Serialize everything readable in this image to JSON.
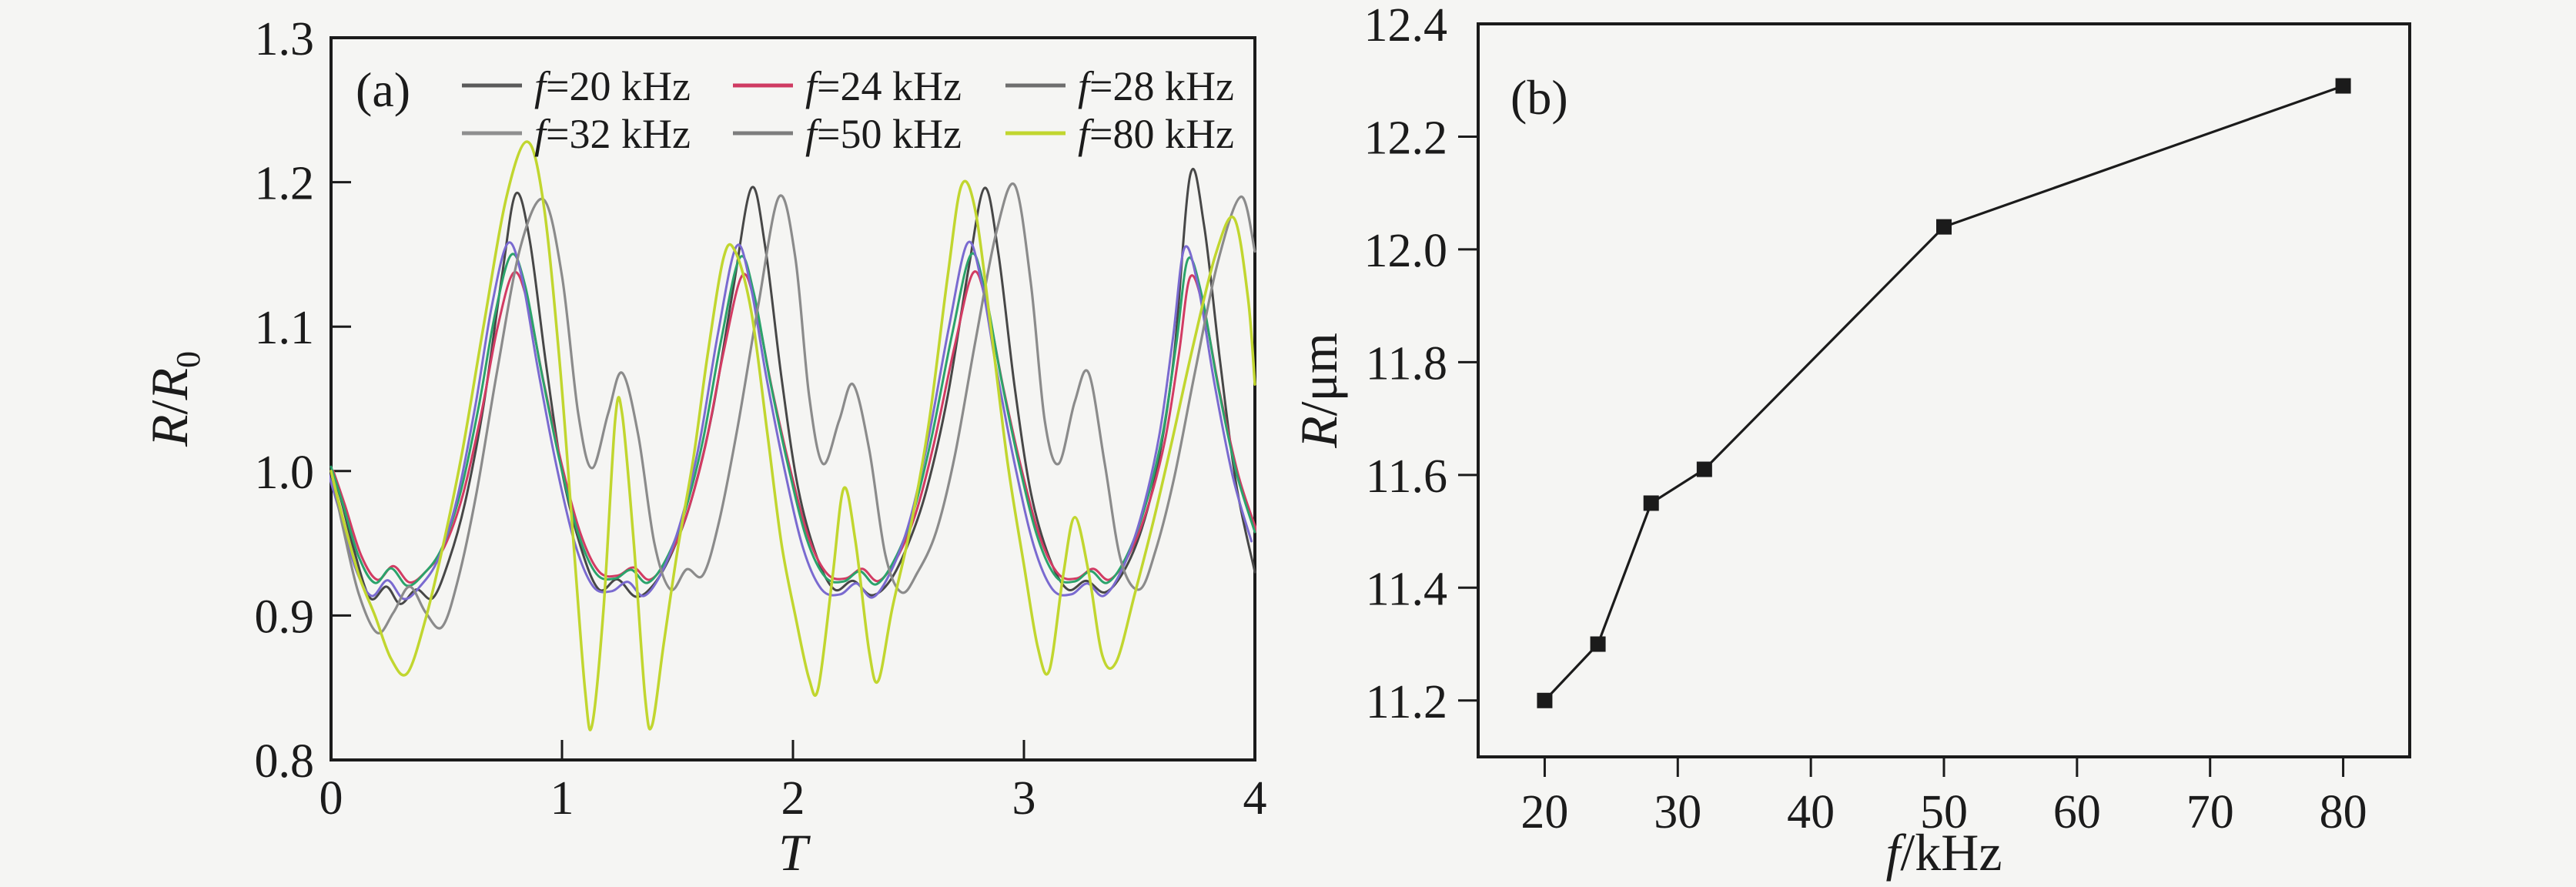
{
  "figure": {
    "background": "#f5f5f3",
    "ink": "#1b1b1b"
  },
  "panel_a": {
    "label": "(a)",
    "xlabel_italic": "T",
    "ylabel_r1": "R",
    "ylabel_slash": "/",
    "ylabel_r2": "R",
    "ylabel_sub": "0"
  },
  "panel_b": {
    "label": "(b)",
    "xlabel_italic": "f",
    "xlabel_rest": "/kHz",
    "ylabel_italic": "R",
    "ylabel_rest": "/μm"
  },
  "chart_data": [
    {
      "type": "line",
      "panel": "a",
      "xlabel": "T",
      "ylabel": "R/R0",
      "xlim": [
        0,
        4
      ],
      "ylim": [
        0.8,
        1.3
      ],
      "x_ticks": [
        0,
        1,
        2,
        3,
        4
      ],
      "x_tick_labels": [
        "0",
        "1",
        "2",
        "3",
        "4"
      ],
      "y_ticks": [
        0.8,
        0.9,
        1.0,
        1.1,
        1.2,
        1.3
      ],
      "y_tick_labels": [
        "0.8",
        "0.9",
        "1.0",
        "1.1",
        "1.2",
        "1.3"
      ],
      "grid": false,
      "legend_position": "top-inside-two-rows",
      "legend": [
        {
          "italic": "f",
          "rest": "=20 kHz"
        },
        {
          "italic": "f",
          "rest": "=24 kHz"
        },
        {
          "italic": "f",
          "rest": "=28 kHz"
        },
        {
          "italic": "f",
          "rest": "=32 kHz"
        },
        {
          "italic": "f",
          "rest": "=50 kHz"
        },
        {
          "italic": "f",
          "rest": "=80 kHz"
        }
      ],
      "base_points": [
        [
          0,
          1.0
        ],
        [
          0.05,
          0.975
        ],
        [
          0.12,
          0.938
        ],
        [
          0.19,
          0.92
        ],
        [
          0.26,
          0.93
        ],
        [
          0.33,
          0.918
        ],
        [
          0.4,
          0.926
        ],
        [
          0.48,
          0.944
        ],
        [
          0.56,
          0.982
        ],
        [
          0.64,
          1.042
        ],
        [
          0.71,
          1.105
        ],
        [
          0.78,
          1.146
        ],
        [
          0.84,
          1.125
        ],
        [
          0.91,
          1.066
        ],
        [
          0.99,
          1.004
        ],
        [
          1.07,
          0.954
        ],
        [
          1.15,
          0.926
        ],
        [
          1.23,
          0.923
        ],
        [
          1.3,
          0.929
        ],
        [
          1.37,
          0.92
        ],
        [
          1.45,
          0.936
        ],
        [
          1.53,
          0.968
        ],
        [
          1.61,
          1.018
        ],
        [
          1.69,
          1.088
        ],
        [
          1.77,
          1.144
        ],
        [
          1.83,
          1.12
        ],
        [
          1.9,
          1.06
        ],
        [
          1.98,
          1.0
        ],
        [
          2.06,
          0.95
        ],
        [
          2.14,
          0.924
        ],
        [
          2.22,
          0.921
        ],
        [
          2.29,
          0.928
        ],
        [
          2.36,
          0.919
        ],
        [
          2.44,
          0.936
        ],
        [
          2.52,
          0.968
        ],
        [
          2.6,
          1.02
        ],
        [
          2.69,
          1.092
        ],
        [
          2.77,
          1.146
        ],
        [
          2.83,
          1.122
        ],
        [
          2.9,
          1.062
        ],
        [
          2.98,
          1.001
        ],
        [
          3.06,
          0.951
        ],
        [
          3.14,
          0.924
        ],
        [
          3.22,
          0.921
        ],
        [
          3.29,
          0.928
        ],
        [
          3.36,
          0.92
        ],
        [
          3.44,
          0.937
        ],
        [
          3.52,
          0.97
        ],
        [
          3.6,
          1.022
        ],
        [
          3.66,
          1.085
        ],
        [
          3.71,
          1.143
        ],
        [
          3.77,
          1.118
        ],
        [
          3.84,
          1.056
        ],
        [
          3.92,
          0.996
        ],
        [
          4.0,
          0.955
        ]
      ],
      "series": [
        {
          "name": "f=20 kHz",
          "color": "#474747",
          "legend_color": "#5a5a5a",
          "width": 3,
          "points": [
            [
              0,
              1.0
            ],
            [
              0.04,
              0.982
            ],
            [
              0.1,
              0.945
            ],
            [
              0.17,
              0.912
            ],
            [
              0.24,
              0.92
            ],
            [
              0.3,
              0.908
            ],
            [
              0.37,
              0.918
            ],
            [
              0.44,
              0.912
            ],
            [
              0.51,
              0.938
            ],
            [
              0.58,
              0.978
            ],
            [
              0.66,
              1.045
            ],
            [
              0.74,
              1.135
            ],
            [
              0.8,
              1.192
            ],
            [
              0.86,
              1.16
            ],
            [
              0.93,
              1.075
            ],
            [
              1.0,
              1.0
            ],
            [
              1.08,
              0.948
            ],
            [
              1.16,
              0.918
            ],
            [
              1.24,
              0.925
            ],
            [
              1.32,
              0.913
            ],
            [
              1.4,
              0.922
            ],
            [
              1.48,
              0.945
            ],
            [
              1.56,
              0.98
            ],
            [
              1.65,
              1.04
            ],
            [
              1.74,
              1.125
            ],
            [
              1.82,
              1.196
            ],
            [
              1.88,
              1.155
            ],
            [
              1.95,
              1.065
            ],
            [
              2.02,
              0.99
            ],
            [
              2.1,
              0.942
            ],
            [
              2.18,
              0.918
            ],
            [
              2.26,
              0.924
            ],
            [
              2.34,
              0.914
            ],
            [
              2.42,
              0.924
            ],
            [
              2.5,
              0.95
            ],
            [
              2.58,
              0.988
            ],
            [
              2.67,
              1.052
            ],
            [
              2.76,
              1.14
            ],
            [
              2.83,
              1.196
            ],
            [
              2.89,
              1.15
            ],
            [
              2.96,
              1.058
            ],
            [
              3.03,
              0.985
            ],
            [
              3.11,
              0.94
            ],
            [
              3.19,
              0.918
            ],
            [
              3.27,
              0.924
            ],
            [
              3.35,
              0.916
            ],
            [
              3.43,
              0.93
            ],
            [
              3.51,
              0.96
            ],
            [
              3.58,
              1.005
            ],
            [
              3.65,
              1.08
            ],
            [
              3.72,
              1.205
            ],
            [
              3.78,
              1.17
            ],
            [
              3.85,
              1.075
            ],
            [
              3.92,
              0.99
            ],
            [
              4.0,
              0.93
            ]
          ]
        },
        {
          "name": "f=24 kHz",
          "color": "#d23b63",
          "legend_color": "#cf3a62",
          "width": 3,
          "from_base": true,
          "scale": 0.94,
          "dx": 0.01,
          "dy": 0
        },
        {
          "name": "f=28 kHz",
          "color": "#2ba36b",
          "legend_color": "#6e6e6e",
          "width": 3,
          "from_base": true,
          "scale": 1.005,
          "dx": 0,
          "dy": 0.003
        },
        {
          "name": "f=32 kHz",
          "color": "#7a6ad0",
          "legend_color": "#8f8f8f",
          "width": 3,
          "from_base": true,
          "scale": 1.08,
          "dx": -0.015,
          "dy": 0
        },
        {
          "name": "f=50 kHz",
          "color": "#8b8b8b",
          "legend_color": "#7d7d7d",
          "width": 3.2,
          "points": [
            [
              0,
              1.0
            ],
            [
              0.05,
              0.962
            ],
            [
              0.12,
              0.915
            ],
            [
              0.2,
              0.888
            ],
            [
              0.27,
              0.902
            ],
            [
              0.34,
              0.92
            ],
            [
              0.41,
              0.902
            ],
            [
              0.48,
              0.892
            ],
            [
              0.55,
              0.925
            ],
            [
              0.63,
              0.985
            ],
            [
              0.72,
              1.07
            ],
            [
              0.82,
              1.155
            ],
            [
              0.92,
              1.188
            ],
            [
              1.0,
              1.135
            ],
            [
              1.07,
              1.04
            ],
            [
              1.13,
              1.002
            ],
            [
              1.2,
              1.04
            ],
            [
              1.26,
              1.068
            ],
            [
              1.33,
              1.025
            ],
            [
              1.4,
              0.95
            ],
            [
              1.47,
              0.918
            ],
            [
              1.54,
              0.932
            ],
            [
              1.61,
              0.928
            ],
            [
              1.68,
              0.965
            ],
            [
              1.76,
              1.03
            ],
            [
              1.85,
              1.115
            ],
            [
              1.94,
              1.19
            ],
            [
              2.01,
              1.148
            ],
            [
              2.07,
              1.052
            ],
            [
              2.13,
              1.005
            ],
            [
              2.2,
              1.035
            ],
            [
              2.26,
              1.06
            ],
            [
              2.33,
              1.015
            ],
            [
              2.4,
              0.942
            ],
            [
              2.47,
              0.916
            ],
            [
              2.54,
              0.93
            ],
            [
              2.62,
              0.958
            ],
            [
              2.7,
              1.01
            ],
            [
              2.79,
              1.09
            ],
            [
              2.88,
              1.165
            ],
            [
              2.96,
              1.198
            ],
            [
              3.03,
              1.13
            ],
            [
              3.09,
              1.035
            ],
            [
              3.15,
              1.005
            ],
            [
              3.22,
              1.048
            ],
            [
              3.28,
              1.068
            ],
            [
              3.35,
              1.005
            ],
            [
              3.42,
              0.938
            ],
            [
              3.5,
              0.918
            ],
            [
              3.57,
              0.945
            ],
            [
              3.65,
              0.995
            ],
            [
              3.74,
              1.068
            ],
            [
              3.84,
              1.145
            ],
            [
              3.94,
              1.19
            ],
            [
              4.0,
              1.152
            ]
          ]
        },
        {
          "name": "f=80 kHz",
          "color": "#c1d62f",
          "legend_color": "#c1d62f",
          "width": 3.5,
          "points": [
            [
              0,
              1.0
            ],
            [
              0.05,
              0.968
            ],
            [
              0.12,
              0.928
            ],
            [
              0.19,
              0.9
            ],
            [
              0.26,
              0.87
            ],
            [
              0.33,
              0.86
            ],
            [
              0.41,
              0.898
            ],
            [
              0.49,
              0.952
            ],
            [
              0.57,
              1.015
            ],
            [
              0.66,
              1.1
            ],
            [
              0.76,
              1.19
            ],
            [
              0.85,
              1.228
            ],
            [
              0.92,
              1.185
            ],
            [
              0.99,
              1.075
            ],
            [
              1.05,
              0.95
            ],
            [
              1.1,
              0.848
            ],
            [
              1.13,
              0.824
            ],
            [
              1.18,
              0.905
            ],
            [
              1.23,
              1.035
            ],
            [
              1.26,
              1.04
            ],
            [
              1.31,
              0.952
            ],
            [
              1.36,
              0.843
            ],
            [
              1.39,
              0.824
            ],
            [
              1.44,
              0.88
            ],
            [
              1.5,
              0.945
            ],
            [
              1.57,
              1.01
            ],
            [
              1.63,
              1.08
            ],
            [
              1.7,
              1.148
            ],
            [
              1.75,
              1.152
            ],
            [
              1.82,
              1.11
            ],
            [
              1.89,
              1.025
            ],
            [
              1.95,
              0.95
            ],
            [
              2.01,
              0.9
            ],
            [
              2.07,
              0.856
            ],
            [
              2.11,
              0.85
            ],
            [
              2.17,
              0.925
            ],
            [
              2.22,
              0.988
            ],
            [
              2.27,
              0.952
            ],
            [
              2.33,
              0.875
            ],
            [
              2.37,
              0.855
            ],
            [
              2.43,
              0.905
            ],
            [
              2.51,
              0.962
            ],
            [
              2.59,
              1.035
            ],
            [
              2.67,
              1.135
            ],
            [
              2.73,
              1.198
            ],
            [
              2.79,
              1.18
            ],
            [
              2.86,
              1.095
            ],
            [
              2.93,
              1.005
            ],
            [
              3.0,
              0.935
            ],
            [
              3.06,
              0.878
            ],
            [
              3.11,
              0.862
            ],
            [
              3.17,
              0.928
            ],
            [
              3.22,
              0.968
            ],
            [
              3.28,
              0.93
            ],
            [
              3.34,
              0.872
            ],
            [
              3.4,
              0.868
            ],
            [
              3.48,
              0.915
            ],
            [
              3.56,
              0.965
            ],
            [
              3.64,
              1.02
            ],
            [
              3.73,
              1.085
            ],
            [
              3.83,
              1.15
            ],
            [
              3.91,
              1.175
            ],
            [
              3.97,
              1.12
            ],
            [
              4.0,
              1.06
            ]
          ]
        }
      ]
    },
    {
      "type": "scatter",
      "panel": "b",
      "xlabel": "f/kHz",
      "ylabel": "R/μm",
      "xlim": [
        15,
        85
      ],
      "ylim": [
        11.1,
        12.4
      ],
      "x_ticks": [
        20,
        30,
        40,
        50,
        60,
        70,
        80
      ],
      "x_tick_labels": [
        "20",
        "30",
        "40",
        "50",
        "60",
        "70",
        "80"
      ],
      "y_ticks": [
        11.2,
        11.4,
        11.6,
        11.8,
        12.0,
        12.2,
        12.4
      ],
      "y_tick_labels": [
        "11.2",
        "11.4",
        "11.6",
        "11.8",
        "12.0",
        "12.2",
        "12.4"
      ],
      "grid": false,
      "marker": "square",
      "marker_color": "#1b1b1b",
      "line_color": "#1b1b1b",
      "x": [
        20,
        24,
        28,
        32,
        50,
        80
      ],
      "y": [
        11.2,
        11.3,
        11.55,
        11.61,
        12.04,
        12.29
      ]
    }
  ]
}
